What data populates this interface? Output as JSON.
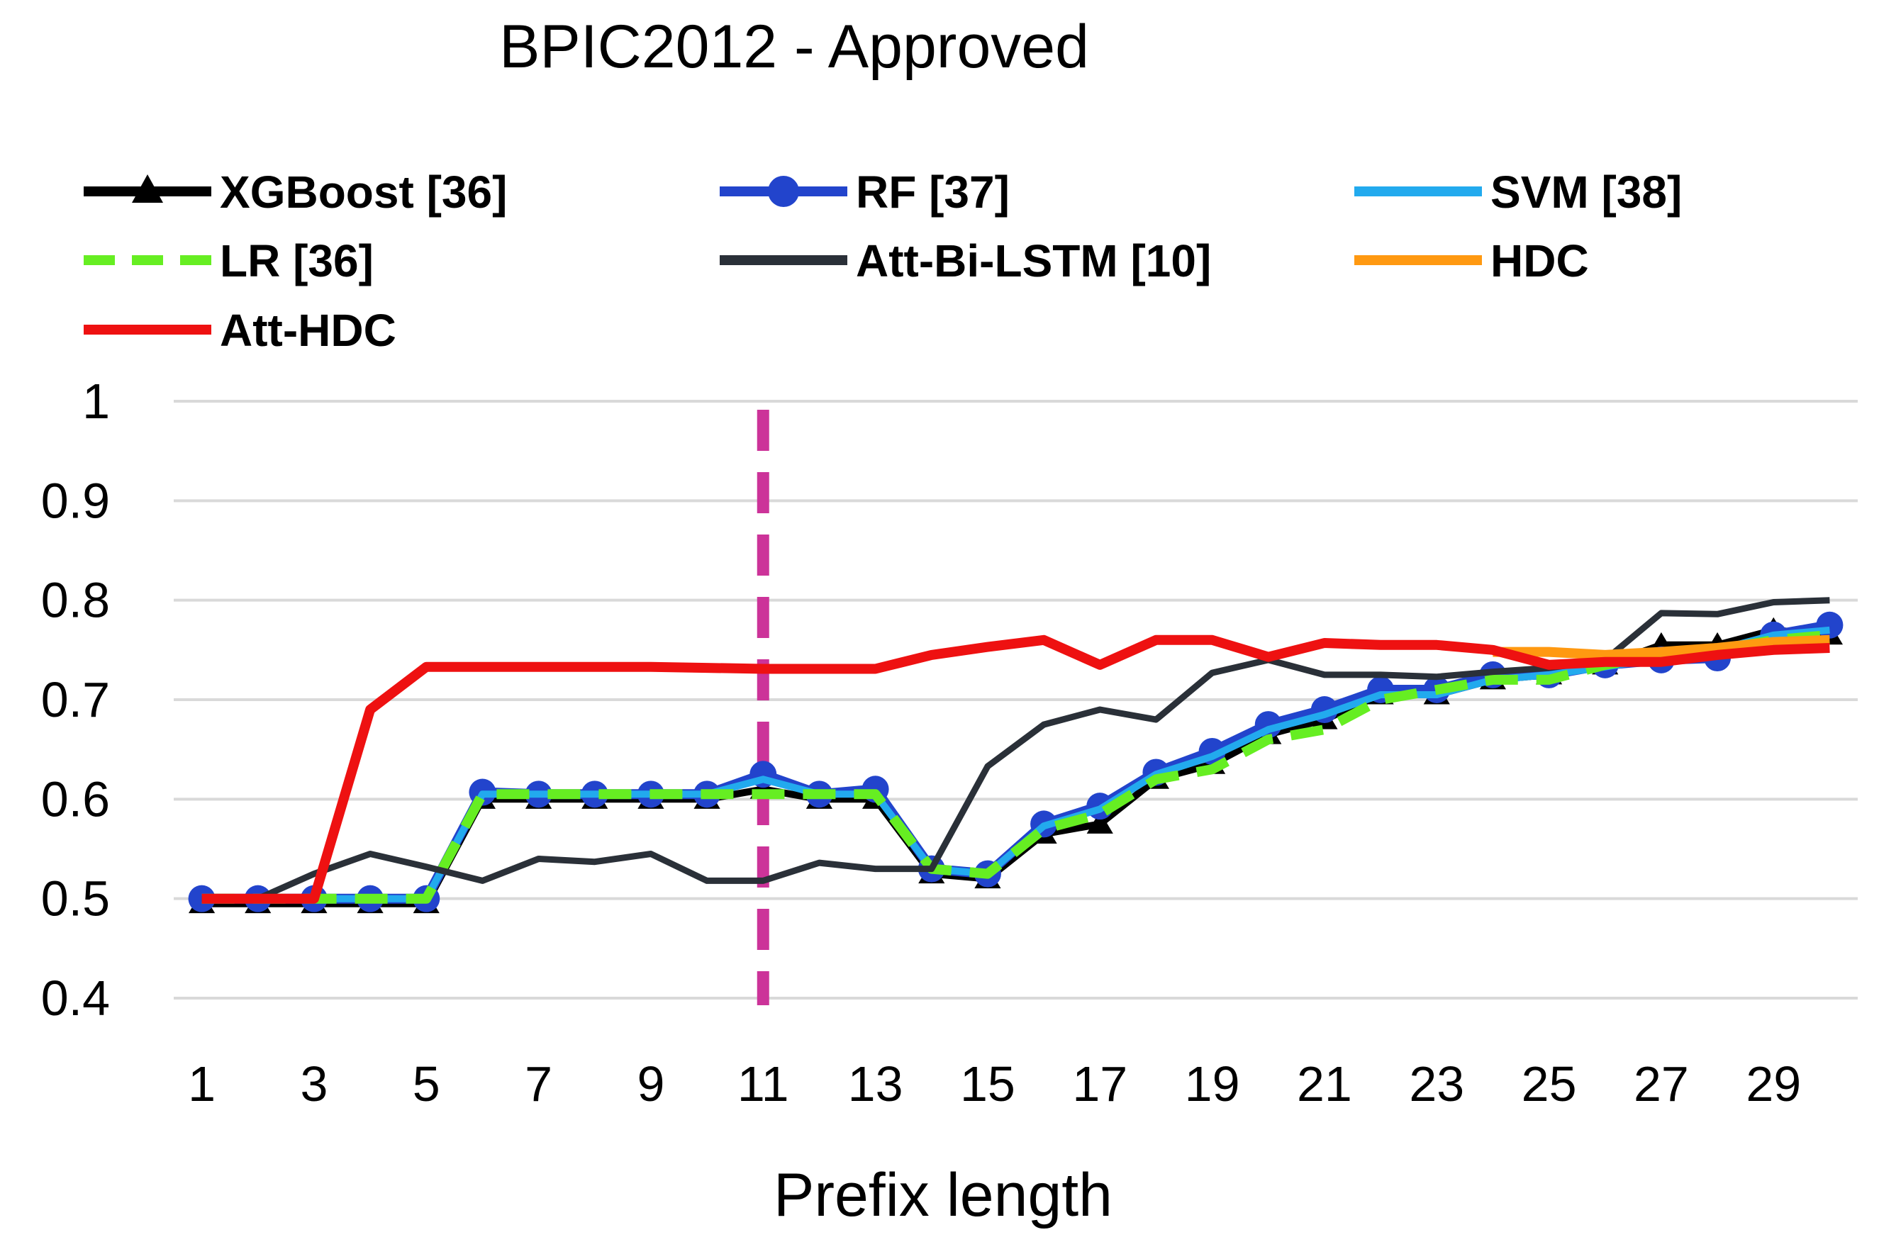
{
  "chart_data": {
    "type": "line",
    "title": "BPIC2012 - Approved",
    "xlabel": "Prefix length",
    "ylabel": "",
    "ylim": [
      0.4,
      1.0
    ],
    "yticks": [
      "0.4",
      "0.5",
      "0.6",
      "0.7",
      "0.8",
      "0.9",
      "1"
    ],
    "xticks": [
      "1",
      "3",
      "5",
      "7",
      "9",
      "11",
      "13",
      "15",
      "17",
      "19",
      "21",
      "23",
      "25",
      "27",
      "29"
    ],
    "x": [
      1,
      2,
      3,
      4,
      5,
      6,
      7,
      8,
      9,
      10,
      11,
      12,
      13,
      14,
      15,
      16,
      17,
      18,
      19,
      20,
      21,
      22,
      23,
      24,
      25,
      26,
      27,
      28,
      29,
      30
    ],
    "grid": true,
    "legend_position": "top",
    "annotation": {
      "type": "vertical-dashed-line",
      "x": 11,
      "color": "#cc3399"
    },
    "series": [
      {
        "name": "XGBoost [36]",
        "color": "#000000",
        "marker": "triangle",
        "dash": "solid",
        "x": [
          1,
          2,
          3,
          4,
          5,
          6,
          7,
          8,
          9,
          10,
          11,
          12,
          13,
          14,
          15,
          16,
          17,
          18,
          19,
          20,
          21,
          22,
          23,
          24,
          25,
          26,
          27,
          28,
          29,
          30
        ],
        "values": [
          0.495,
          0.495,
          0.495,
          0.495,
          0.495,
          0.6,
          0.6,
          0.6,
          0.6,
          0.6,
          0.61,
          0.6,
          0.6,
          0.525,
          0.52,
          0.565,
          0.575,
          0.62,
          0.635,
          0.665,
          0.68,
          0.705,
          0.705,
          0.72,
          0.725,
          0.735,
          0.755,
          0.755,
          0.77,
          0.765
        ]
      },
      {
        "name": "RF [37]",
        "color": "#2244cc",
        "marker": "circle",
        "dash": "solid",
        "x": [
          1,
          2,
          3,
          4,
          5,
          6,
          7,
          8,
          9,
          10,
          11,
          12,
          13,
          14,
          15,
          16,
          17,
          18,
          19,
          20,
          21,
          22,
          23,
          24,
          25,
          26,
          27,
          28,
          29,
          30
        ],
        "values": [
          0.5,
          0.5,
          0.5,
          0.5,
          0.5,
          0.607,
          0.605,
          0.605,
          0.605,
          0.605,
          0.625,
          0.605,
          0.61,
          0.53,
          0.525,
          0.575,
          0.593,
          0.627,
          0.648,
          0.675,
          0.69,
          0.71,
          0.71,
          0.725,
          0.725,
          0.735,
          0.74,
          0.742,
          0.765,
          0.775
        ]
      },
      {
        "name": "SVM [38]",
        "color": "#22aaee",
        "marker": "none",
        "dash": "solid",
        "x": [
          1,
          2,
          3,
          4,
          5,
          6,
          7,
          8,
          9,
          10,
          11,
          12,
          13,
          14,
          15,
          16,
          17,
          18,
          19,
          20,
          21,
          22,
          23,
          24,
          25,
          26,
          27,
          28,
          29,
          30
        ],
        "values": [
          0.5,
          0.5,
          0.5,
          0.5,
          0.5,
          0.605,
          0.605,
          0.605,
          0.605,
          0.605,
          0.62,
          0.605,
          0.605,
          0.53,
          0.525,
          0.573,
          0.59,
          0.625,
          0.643,
          0.67,
          0.685,
          0.705,
          0.705,
          0.72,
          0.725,
          0.733,
          0.742,
          0.75,
          0.765,
          0.77
        ]
      },
      {
        "name": "LR [36]",
        "color": "#66ee22",
        "marker": "none",
        "dash": "dashed",
        "x": [
          1,
          2,
          3,
          4,
          5,
          6,
          7,
          8,
          9,
          10,
          11,
          12,
          13,
          14,
          15,
          16,
          17,
          18,
          19,
          20,
          21,
          22,
          23,
          24,
          25,
          26,
          27,
          28,
          29,
          30
        ],
        "values": [
          0.5,
          0.5,
          0.5,
          0.5,
          0.5,
          0.605,
          0.605,
          0.605,
          0.605,
          0.605,
          0.605,
          0.605,
          0.605,
          0.53,
          0.525,
          0.57,
          0.585,
          0.62,
          0.63,
          0.66,
          0.67,
          0.7,
          0.71,
          0.72,
          0.72,
          0.735,
          0.745,
          0.75,
          0.76,
          0.765
        ]
      },
      {
        "name": "Att-Bi-LSTM [10]",
        "color": "#2a3038",
        "marker": "none",
        "dash": "solid",
        "x": [
          1,
          2,
          3,
          4,
          5,
          6,
          7,
          8,
          9,
          10,
          11,
          12,
          13,
          14,
          15,
          16,
          17,
          18,
          19,
          20,
          21,
          22,
          23,
          24,
          25,
          26,
          27,
          28,
          29,
          30
        ],
        "values": [
          0.5,
          0.5,
          0.525,
          0.545,
          0.532,
          0.518,
          0.54,
          0.537,
          0.545,
          0.518,
          0.518,
          0.536,
          0.53,
          0.53,
          0.633,
          0.675,
          0.69,
          0.68,
          0.727,
          0.74,
          0.725,
          0.725,
          0.723,
          0.728,
          0.732,
          0.74,
          0.787,
          0.786,
          0.798,
          0.8
        ]
      },
      {
        "name": "HDC",
        "color": "#ff9911",
        "marker": "none",
        "dash": "solid",
        "x": [
          24,
          25,
          26,
          27,
          28,
          29,
          30
        ],
        "values": [
          0.748,
          0.748,
          0.745,
          0.748,
          0.752,
          0.758,
          0.76
        ]
      },
      {
        "name": "Att-HDC",
        "color": "#ee1111",
        "marker": "none",
        "dash": "solid",
        "x": [
          1,
          2,
          3,
          4,
          5,
          6,
          7,
          8,
          9,
          10,
          11,
          12,
          13,
          14,
          15,
          16,
          17,
          18,
          19,
          20,
          21,
          22,
          23,
          24,
          25,
          26,
          27,
          28,
          29,
          30
        ],
        "values": [
          0.5,
          0.5,
          0.5,
          0.69,
          0.733,
          0.733,
          0.733,
          0.733,
          0.733,
          0.732,
          0.731,
          0.731,
          0.731,
          0.745,
          0.753,
          0.76,
          0.735,
          0.76,
          0.76,
          0.743,
          0.757,
          0.755,
          0.755,
          0.75,
          0.735,
          0.738,
          0.738,
          0.745,
          0.75,
          0.752
        ]
      }
    ]
  }
}
